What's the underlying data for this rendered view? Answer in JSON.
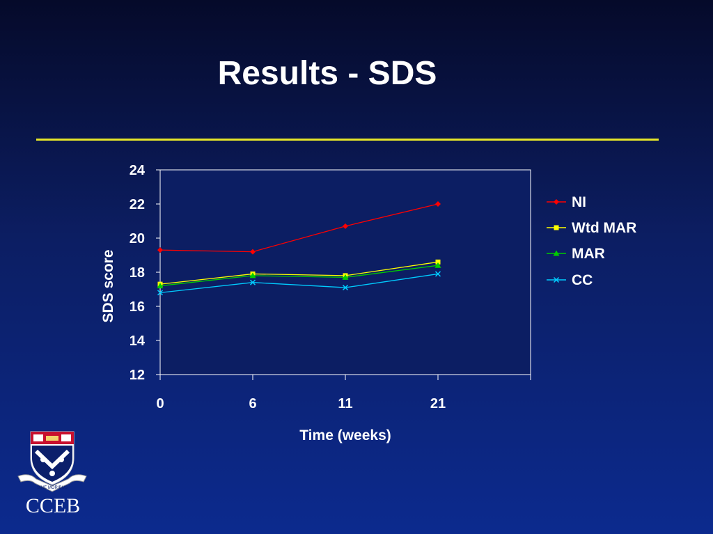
{
  "slide": {
    "title": "Results - SDS",
    "institution": "CCEB",
    "motto": "SINE MORIBUS"
  },
  "colors": {
    "rule": "#e6e629",
    "axis": "#ffffff",
    "plot_bg": "#0c1e63"
  },
  "chart_data": {
    "type": "line",
    "title": "",
    "xlabel": "Time (weeks)",
    "ylabel": "SDS score",
    "categories": [
      "0",
      "6",
      "11",
      "21"
    ],
    "ylim": [
      12,
      24
    ],
    "yticks": [
      12,
      14,
      16,
      18,
      20,
      22,
      24
    ],
    "grid": false,
    "legend": "right",
    "series": [
      {
        "name": "NI",
        "color": "#ff0000",
        "marker": "diamond",
        "values": [
          19.3,
          19.2,
          20.7,
          22.0
        ]
      },
      {
        "name": "Wtd MAR",
        "color": "#ffff00",
        "marker": "square",
        "values": [
          17.3,
          17.9,
          17.8,
          18.6
        ]
      },
      {
        "name": "MAR",
        "color": "#00cc00",
        "marker": "triangle",
        "values": [
          17.2,
          17.8,
          17.7,
          18.4
        ]
      },
      {
        "name": "CC",
        "color": "#00ccff",
        "marker": "x",
        "values": [
          16.8,
          17.4,
          17.1,
          17.9
        ]
      }
    ]
  }
}
